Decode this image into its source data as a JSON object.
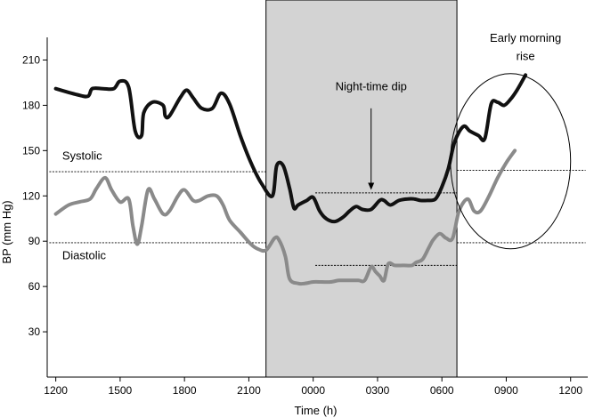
{
  "chart_data": {
    "type": "line",
    "xlabel": "Time (h)",
    "ylabel": "BP (mm Hg)",
    "x_unit": "clock hours, 12:00 day 1 to 12:00 day 2",
    "x_ticks": [
      {
        "label": "1200",
        "value": 12
      },
      {
        "label": "1500",
        "value": 15
      },
      {
        "label": "1800",
        "value": 18
      },
      {
        "label": "2100",
        "value": 21
      },
      {
        "label": "0000",
        "value": 24
      },
      {
        "label": "0300",
        "value": 27
      },
      {
        "label": "0600",
        "value": 30
      },
      {
        "label": "0900",
        "value": 33
      },
      {
        "label": "1200",
        "value": 36
      }
    ],
    "xlim": [
      11.6,
      36.8
    ],
    "y_ticks": [
      30,
      60,
      90,
      120,
      150,
      180,
      210
    ],
    "ylim": [
      0,
      225
    ],
    "grid": false,
    "night_shading": {
      "x_start": 21.8,
      "x_end": 30.7,
      "color": "#d3d3d3"
    },
    "reference_lines": [
      {
        "name": "Systolic day",
        "y": 136,
        "x_start": 11.7,
        "x_end": 21.8
      },
      {
        "name": "Diastolic day",
        "y": 89,
        "x_start": 11.7,
        "x_end": 21.8
      },
      {
        "name": "Systolic night",
        "y": 122,
        "x_start": 24.1,
        "x_end": 30.7
      },
      {
        "name": "Diastolic night",
        "y": 74,
        "x_start": 24.1,
        "x_end": 30.7
      },
      {
        "name": "Systolic morning",
        "y": 137,
        "x_start": 30.7,
        "x_end": 36.7
      },
      {
        "name": "Diastolic morning",
        "y": 89,
        "x_start": 30.7,
        "x_end": 36.7
      }
    ],
    "series": [
      {
        "label": "Systolic",
        "color": "#111111",
        "label_pos": {
          "x": 12.3,
          "y": 144
        },
        "points": [
          [
            12.0,
            191
          ],
          [
            13.0,
            187
          ],
          [
            13.5,
            186
          ],
          [
            13.7,
            191
          ],
          [
            14.2,
            191
          ],
          [
            14.7,
            191
          ],
          [
            15.0,
            196
          ],
          [
            15.4,
            192
          ],
          [
            15.7,
            163
          ],
          [
            16.0,
            160
          ],
          [
            16.1,
            175
          ],
          [
            16.5,
            182
          ],
          [
            17.0,
            180
          ],
          [
            17.1,
            173
          ],
          [
            17.3,
            173
          ],
          [
            17.8,
            185
          ],
          [
            18.1,
            190
          ],
          [
            18.4,
            185
          ],
          [
            18.8,
            178
          ],
          [
            19.3,
            178
          ],
          [
            19.7,
            188
          ],
          [
            20.1,
            181
          ],
          [
            20.6,
            160
          ],
          [
            21.1,
            142
          ],
          [
            21.6,
            128
          ],
          [
            22.1,
            120
          ],
          [
            22.3,
            140
          ],
          [
            22.6,
            140
          ],
          [
            22.9,
            125
          ],
          [
            23.1,
            112
          ],
          [
            23.3,
            114
          ],
          [
            23.7,
            117
          ],
          [
            24.0,
            119
          ],
          [
            24.3,
            110
          ],
          [
            24.6,
            105
          ],
          [
            25.0,
            103
          ],
          [
            25.4,
            106
          ],
          [
            25.7,
            110
          ],
          [
            26.0,
            113
          ],
          [
            26.3,
            111
          ],
          [
            26.7,
            111
          ],
          [
            27.1,
            117
          ],
          [
            27.3,
            117
          ],
          [
            27.6,
            114
          ],
          [
            28.0,
            117
          ],
          [
            28.4,
            118
          ],
          [
            28.7,
            118
          ],
          [
            29.0,
            117
          ],
          [
            29.3,
            117
          ],
          [
            29.7,
            118
          ],
          [
            30.0,
            126
          ],
          [
            30.3,
            138
          ],
          [
            30.6,
            156
          ],
          [
            31.0,
            166
          ],
          [
            31.3,
            163
          ],
          [
            31.7,
            160
          ],
          [
            32.0,
            158
          ],
          [
            32.3,
            181
          ],
          [
            32.6,
            182
          ],
          [
            32.9,
            180
          ],
          [
            33.2,
            184
          ],
          [
            33.5,
            190
          ],
          [
            33.9,
            200
          ]
        ]
      },
      {
        "label": "Diastolic",
        "color": "#8a8a8a",
        "label_pos": {
          "x": 12.3,
          "y": 78
        },
        "points": [
          [
            12.0,
            108
          ],
          [
            12.6,
            114
          ],
          [
            13.1,
            116
          ],
          [
            13.6,
            118
          ],
          [
            13.9,
            125
          ],
          [
            14.3,
            132
          ],
          [
            14.6,
            124
          ],
          [
            15.0,
            116
          ],
          [
            15.4,
            118
          ],
          [
            15.6,
            100
          ],
          [
            15.8,
            88
          ],
          [
            16.0,
            100
          ],
          [
            16.3,
            124
          ],
          [
            16.6,
            118
          ],
          [
            17.0,
            108
          ],
          [
            17.3,
            110
          ],
          [
            17.7,
            120
          ],
          [
            18.0,
            124
          ],
          [
            18.4,
            117
          ],
          [
            18.7,
            117
          ],
          [
            19.1,
            120
          ],
          [
            19.5,
            120
          ],
          [
            19.8,
            114
          ],
          [
            20.1,
            104
          ],
          [
            20.6,
            96
          ],
          [
            21.1,
            88
          ],
          [
            21.4,
            85
          ],
          [
            21.8,
            84
          ],
          [
            22.2,
            92
          ],
          [
            22.4,
            91
          ],
          [
            22.7,
            80
          ],
          [
            22.9,
            65
          ],
          [
            23.3,
            62
          ],
          [
            23.6,
            62
          ],
          [
            24.0,
            63
          ],
          [
            24.4,
            63
          ],
          [
            24.8,
            63
          ],
          [
            25.2,
            64
          ],
          [
            25.6,
            64
          ],
          [
            26.1,
            64
          ],
          [
            26.4,
            64
          ],
          [
            26.7,
            73
          ],
          [
            26.9,
            70
          ],
          [
            27.1,
            67
          ],
          [
            27.3,
            64
          ],
          [
            27.5,
            75
          ],
          [
            27.8,
            74
          ],
          [
            28.2,
            74
          ],
          [
            28.6,
            74
          ],
          [
            28.8,
            76
          ],
          [
            29.1,
            78
          ],
          [
            29.4,
            86
          ],
          [
            29.6,
            91
          ],
          [
            29.9,
            95
          ],
          [
            30.2,
            92
          ],
          [
            30.5,
            92
          ],
          [
            30.8,
            110
          ],
          [
            31.2,
            118
          ],
          [
            31.5,
            110
          ],
          [
            31.8,
            110
          ],
          [
            32.2,
            120
          ],
          [
            32.6,
            132
          ],
          [
            33.0,
            142
          ],
          [
            33.4,
            150
          ]
        ]
      }
    ],
    "annotations": [
      {
        "text": "Night-time dip",
        "x": 26.7,
        "y": 190,
        "anchor": "middle"
      },
      {
        "text": "Early morning",
        "x": 33.9,
        "y": 222,
        "anchor": "middle"
      },
      {
        "text": "rise",
        "x": 33.9,
        "y": 210,
        "anchor": "middle"
      }
    ],
    "arrow": {
      "x": 26.7,
      "y_from": 178,
      "y_to": 124
    },
    "ellipse": {
      "cx": 33.2,
      "cy": 143,
      "rx_hours": 2.8,
      "ry_mmhg": 58
    }
  }
}
